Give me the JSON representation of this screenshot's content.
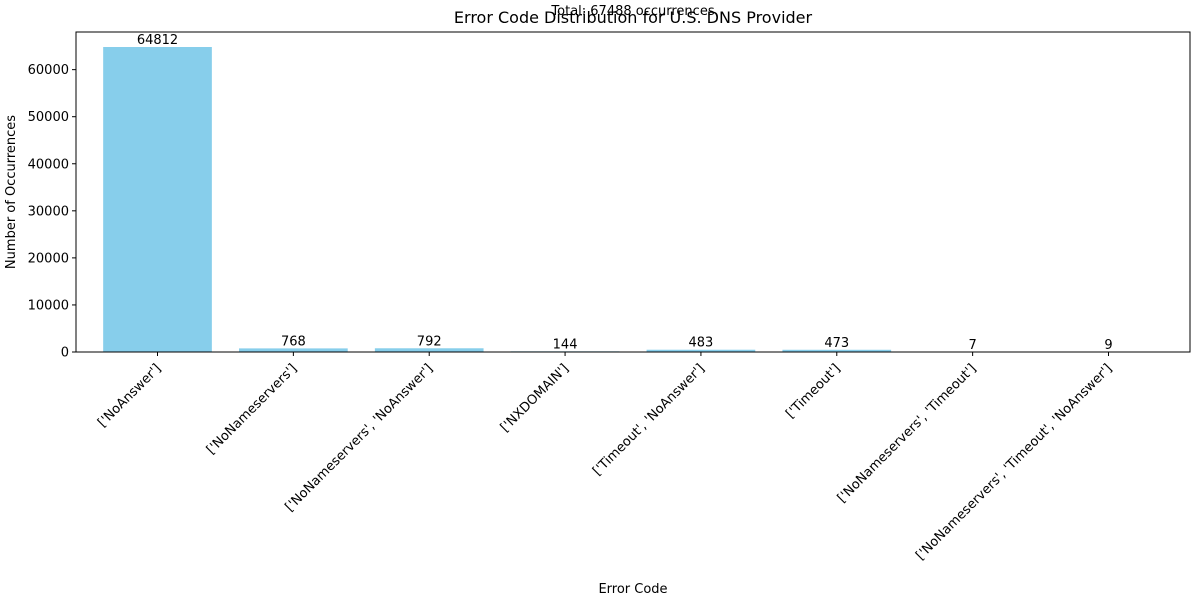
{
  "chart_data": {
    "type": "bar",
    "title": "Error Code Distribution for U.S. DNS Provider",
    "subtitle": "Total: 67488 occurrences",
    "xlabel": "Error Code",
    "ylabel": "Number of Occurrences",
    "categories": [
      "['NoAnswer']",
      "['NoNameservers']",
      "['NoNameservers', 'NoAnswer']",
      "['NXDOMAIN']",
      "['Timeout', 'NoAnswer']",
      "['Timeout']",
      "['NoNameservers', 'Timeout']",
      "['NoNameservers', 'Timeout', 'NoAnswer']"
    ],
    "values": [
      64812,
      768,
      792,
      144,
      483,
      473,
      7,
      9
    ],
    "data_labels": [
      "64812",
      "768",
      "792",
      "144",
      "483",
      "473",
      "7",
      "9"
    ],
    "ylim": [
      0,
      68000
    ],
    "yticks": [
      0,
      10000,
      20000,
      30000,
      40000,
      50000,
      60000
    ],
    "ytick_labels": [
      "0",
      "10000",
      "20000",
      "30000",
      "40000",
      "50000",
      "60000"
    ],
    "bar_color": "#87ceeb",
    "grid": false,
    "legend": "none"
  }
}
